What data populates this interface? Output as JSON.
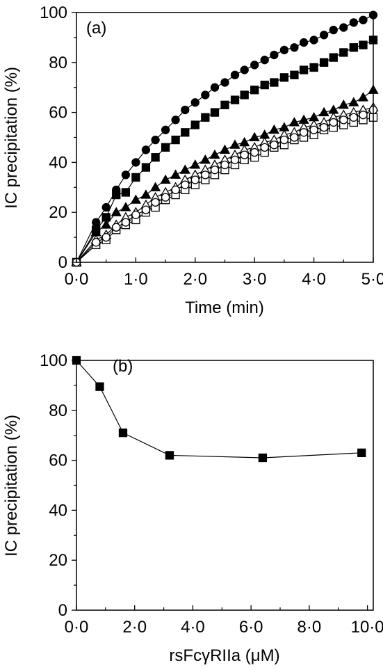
{
  "chart_data": [
    {
      "panel": "(a)",
      "type": "scatter",
      "xlabel": "Time (min)",
      "ylabel": "IC precipitation (%)",
      "xlim": [
        0,
        5
      ],
      "ylim": [
        0,
        100
      ],
      "x_ticks": [
        0,
        1,
        2,
        3,
        4,
        5
      ],
      "x_tick_labels": [
        "0·0",
        "1·0",
        "2·0",
        "3·0",
        "4·0",
        "5·0"
      ],
      "y_ticks": [
        0,
        20,
        40,
        60,
        80,
        100
      ],
      "y_tick_labels": [
        "0",
        "20",
        "40",
        "60",
        "80",
        "100"
      ],
      "grid": false,
      "legend": "none",
      "x": [
        0,
        0.33,
        0.5,
        0.67,
        0.83,
        1.0,
        1.17,
        1.33,
        1.5,
        1.67,
        1.83,
        2.0,
        2.17,
        2.33,
        2.5,
        2.67,
        2.83,
        3.0,
        3.17,
        3.33,
        3.5,
        3.67,
        3.83,
        4.0,
        4.17,
        4.33,
        4.5,
        4.67,
        4.83,
        5.0
      ],
      "series": [
        {
          "marker": "filled-circle",
          "values": [
            0,
            16,
            22,
            29,
            35,
            40,
            45,
            49,
            53,
            57,
            61,
            64,
            67,
            70,
            72,
            75,
            77,
            79,
            81,
            83,
            85,
            86,
            88,
            89,
            91,
            93,
            94,
            96,
            97,
            99
          ]
        },
        {
          "marker": "filled-square",
          "values": [
            0,
            13,
            18,
            27,
            28,
            34,
            38,
            42,
            46,
            49,
            52,
            55,
            58,
            60,
            63,
            65,
            67,
            69,
            71,
            72,
            74,
            75,
            77,
            78,
            80,
            82,
            84,
            86,
            87,
            89
          ]
        },
        {
          "marker": "filled-triangle",
          "values": [
            0,
            12,
            15,
            20,
            22,
            25,
            27,
            30,
            33,
            35,
            37,
            39,
            41,
            43,
            45,
            47,
            48,
            50,
            51,
            53,
            54,
            56,
            57,
            58,
            60,
            61,
            63,
            64,
            66,
            69
          ]
        },
        {
          "marker": "open-triangle",
          "values": [
            0,
            9,
            11,
            15,
            18,
            20,
            23,
            26,
            28,
            30,
            33,
            35,
            37,
            39,
            41,
            43,
            45,
            46,
            48,
            49,
            51,
            52,
            54,
            55,
            56,
            58,
            59,
            60,
            61,
            62
          ]
        },
        {
          "marker": "open-square",
          "values": [
            0,
            7,
            9,
            13,
            15,
            17,
            20,
            22,
            25,
            27,
            29,
            31,
            33,
            35,
            37,
            39,
            41,
            42,
            44,
            46,
            47,
            49,
            50,
            51,
            53,
            54,
            55,
            56,
            57,
            58
          ]
        },
        {
          "marker": "open-circle",
          "values": [
            0,
            8,
            10,
            14,
            16,
            19,
            21,
            24,
            26,
            29,
            31,
            33,
            35,
            37,
            39,
            41,
            43,
            44,
            46,
            47,
            49,
            50,
            52,
            53,
            54,
            56,
            57,
            58,
            59,
            61
          ]
        }
      ]
    },
    {
      "panel": "(b)",
      "type": "line",
      "xlabel": "rsFcγRIIa (μM)",
      "ylabel": "IC precipitation (%)",
      "xlim": [
        0,
        10.2
      ],
      "ylim": [
        0,
        100
      ],
      "x_ticks": [
        0,
        2,
        4,
        6,
        8,
        10
      ],
      "x_tick_labels": [
        "0·0",
        "2·0",
        "4·0",
        "6·0",
        "8·0",
        "10·0"
      ],
      "y_ticks": [
        0,
        20,
        40,
        60,
        80,
        100
      ],
      "y_tick_labels": [
        "0",
        "20",
        "40",
        "60",
        "80",
        "100"
      ],
      "grid": false,
      "legend": "none",
      "series": [
        {
          "marker": "filled-square",
          "x": [
            0,
            0.8,
            1.6,
            3.2,
            6.4,
            9.8
          ],
          "values": [
            100,
            89.5,
            71,
            62,
            61,
            63
          ]
        }
      ]
    }
  ]
}
